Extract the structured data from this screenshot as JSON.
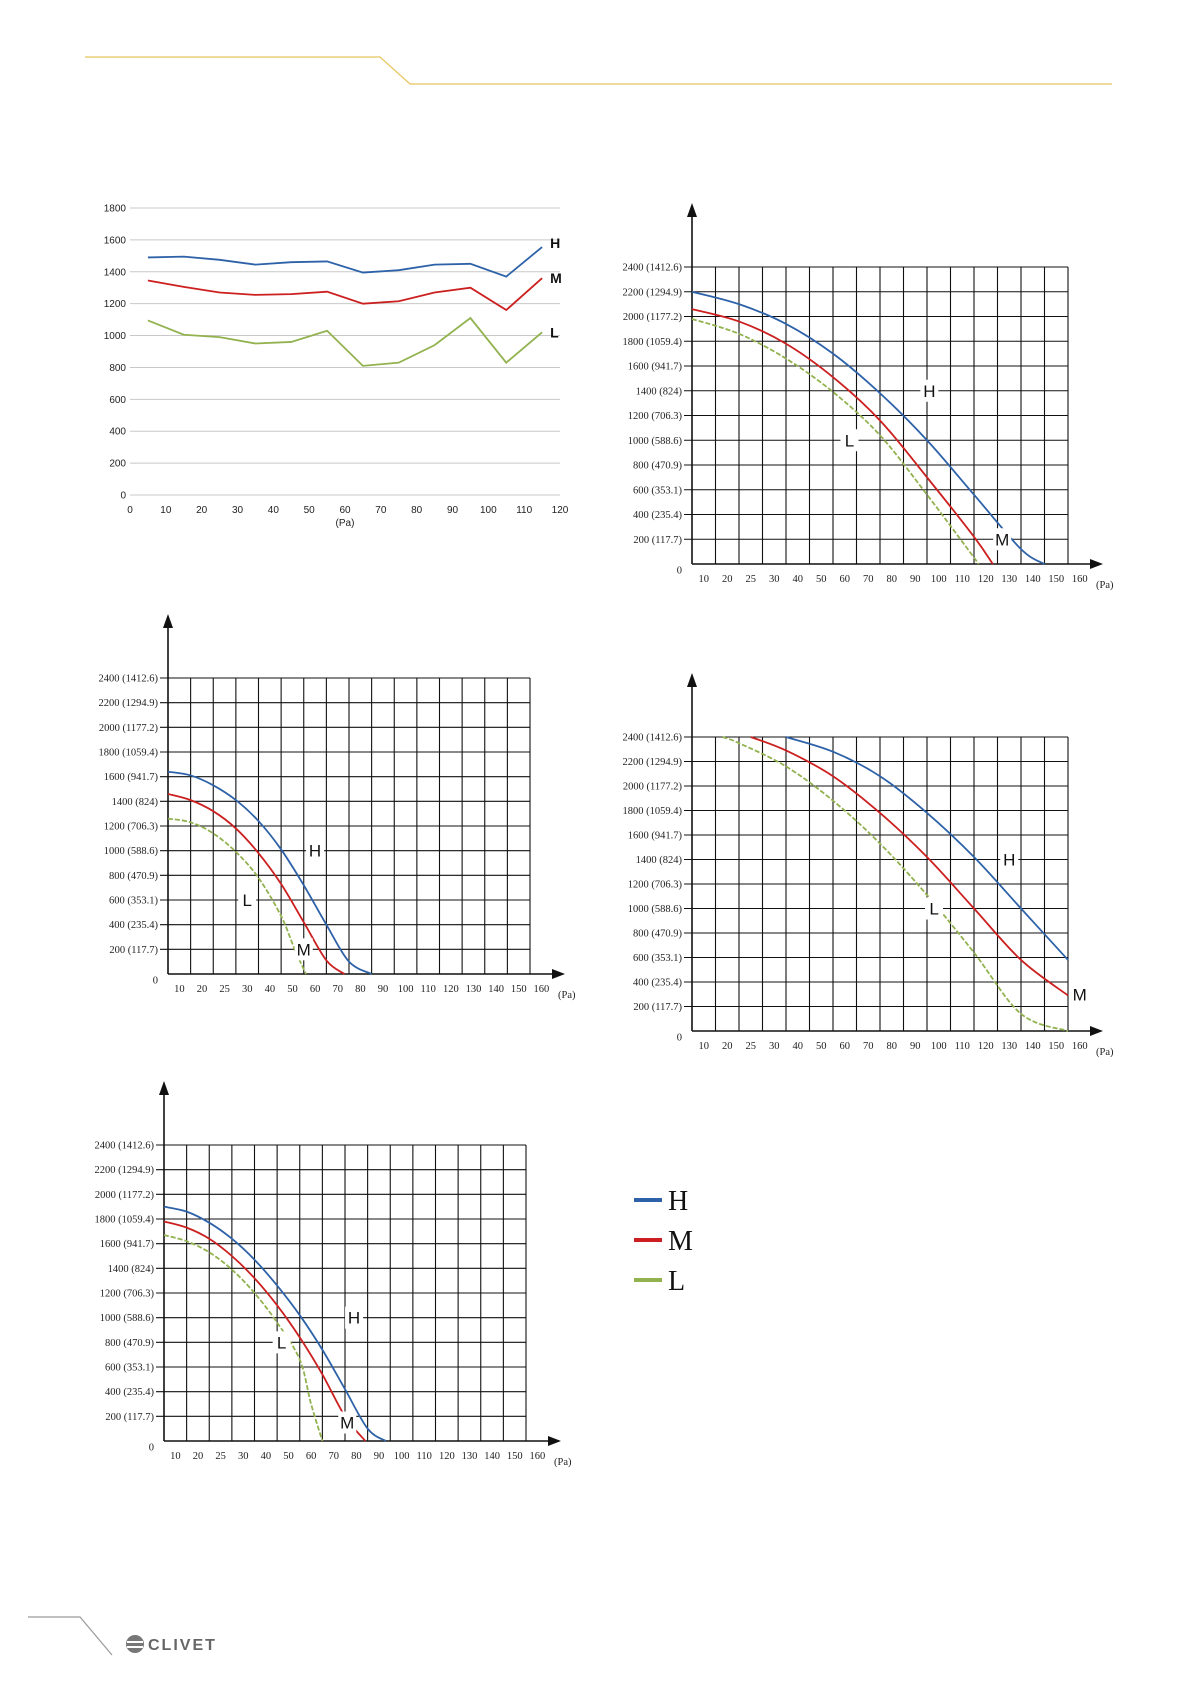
{
  "branding": {
    "logo_text": "CLIVET"
  },
  "colors": {
    "H": "#2e62a8",
    "M": "#cc1f1f",
    "L": "#92b24f",
    "grid_dark": "#111111",
    "grid_light": "#c8c8c8",
    "header_line": "#e7c45c"
  },
  "legend": {
    "items": [
      {
        "key": "H",
        "label": "H"
      },
      {
        "key": "M",
        "label": "M"
      },
      {
        "key": "L",
        "label": "L"
      }
    ]
  },
  "chart_data": [
    {
      "type": "line",
      "title": "",
      "xlabel": "(Pa)",
      "ylabel": "",
      "xlim": [
        0,
        120
      ],
      "ylim": [
        0,
        1800
      ],
      "xticks": [
        "0",
        "10",
        "20",
        "30",
        "40",
        "50",
        "60",
        "70",
        "80",
        "90",
        "100",
        "110",
        "120"
      ],
      "yticks": [
        "0",
        "200",
        "400",
        "600",
        "800",
        "1000",
        "1200",
        "1400",
        "1600",
        "1800"
      ],
      "grid": "horizontal",
      "series": [
        {
          "name": "H",
          "x": [
            5,
            15,
            25,
            35,
            45,
            55,
            65,
            75,
            85,
            95,
            105,
            115
          ],
          "y": [
            1490,
            1495,
            1475,
            1445,
            1460,
            1465,
            1395,
            1410,
            1445,
            1450,
            1370,
            1555
          ]
        },
        {
          "name": "M",
          "x": [
            5,
            15,
            25,
            35,
            45,
            55,
            65,
            75,
            85,
            95,
            105,
            115
          ],
          "y": [
            1345,
            1305,
            1270,
            1255,
            1260,
            1275,
            1200,
            1215,
            1270,
            1300,
            1160,
            1360
          ]
        },
        {
          "name": "L",
          "x": [
            5,
            15,
            25,
            35,
            45,
            55,
            65,
            75,
            85,
            95,
            105,
            115
          ],
          "y": [
            1095,
            1005,
            990,
            950,
            960,
            1030,
            810,
            830,
            940,
            1110,
            830,
            1020
          ]
        }
      ]
    },
    {
      "type": "line",
      "title": "",
      "xlabel": "(Pa)",
      "ylabel": "",
      "xticks": [
        "10",
        "20",
        "25",
        "30",
        "40",
        "50",
        "60",
        "70",
        "80",
        "90",
        "100",
        "110",
        "120",
        "130",
        "140",
        "150",
        "160"
      ],
      "yticks": [
        "0",
        "200 (117.7)",
        "400 (235.4)",
        "600 (353.1)",
        "800 (470.9)",
        "1000 (588.6)",
        "1200 (706.3)",
        "1400 (824)",
        "1600 (941.7)",
        "1800 (1059.4)",
        "2000 (1177.2)",
        "2200 (1294.9)",
        "2400 (1412.6)"
      ],
      "series": [
        {
          "name": "H",
          "x": [
            0,
            2,
            4,
            6,
            8,
            10,
            12,
            14,
            15
          ],
          "y": [
            2200,
            2100,
            1940,
            1700,
            1380,
            1000,
            560,
            120,
            0
          ]
        },
        {
          "name": "M",
          "x": [
            0,
            2,
            4,
            6,
            8,
            10,
            12,
            12.8
          ],
          "y": [
            2060,
            1960,
            1780,
            1510,
            1160,
            700,
            220,
            0
          ]
        },
        {
          "name": "L",
          "x": [
            0,
            2,
            4,
            6,
            8,
            10,
            11.5,
            12.2
          ],
          "y": [
            1980,
            1860,
            1660,
            1390,
            1040,
            560,
            180,
            0
          ]
        }
      ],
      "annotations": [
        "H",
        "M",
        "L"
      ]
    },
    {
      "type": "line",
      "title": "",
      "xlabel": "(Pa)",
      "ylabel": "",
      "xticks": [
        "10",
        "20",
        "25",
        "30",
        "40",
        "50",
        "60",
        "70",
        "80",
        "90",
        "100",
        "110",
        "120",
        "130",
        "140",
        "150",
        "160"
      ],
      "yticks": [
        "0",
        "200 (117.7)",
        "400 (235.4)",
        "600 (353.1)",
        "800 (470.9)",
        "1000 (588.6)",
        "1200 (706.3)",
        "1400 (824)",
        "1600 (941.7)",
        "1800 (1059.4)",
        "2000 (1177.2)",
        "2200 (1294.9)",
        "2400 (1412.6)"
      ],
      "series": [
        {
          "name": "H",
          "x": [
            0,
            1,
            2,
            3,
            4,
            5,
            6,
            7,
            8,
            9
          ],
          "y": [
            1640,
            1610,
            1530,
            1410,
            1240,
            1010,
            720,
            400,
            100,
            0
          ]
        },
        {
          "name": "M",
          "x": [
            0,
            1,
            2,
            3,
            4,
            5,
            6,
            7,
            7.8
          ],
          "y": [
            1460,
            1410,
            1320,
            1180,
            980,
            730,
            420,
            110,
            0
          ]
        },
        {
          "name": "L",
          "x": [
            0,
            1,
            2,
            3,
            4,
            5,
            5.6,
            6.1
          ],
          "y": [
            1260,
            1230,
            1140,
            990,
            780,
            470,
            200,
            0
          ]
        }
      ],
      "annotations": [
        "H",
        "M",
        "L"
      ]
    },
    {
      "type": "line",
      "title": "",
      "xlabel": "(Pa)",
      "ylabel": "",
      "xticks": [
        "10",
        "20",
        "25",
        "30",
        "40",
        "50",
        "60",
        "70",
        "80",
        "90",
        "100",
        "110",
        "120",
        "130",
        "140",
        "150",
        "160"
      ],
      "yticks": [
        "0",
        "200 (117.7)",
        "400 (235.4)",
        "600 (353.1)",
        "800 (470.9)",
        "1000 (588.6)",
        "1200 (706.3)",
        "1400 (824)",
        "1600 (941.7)",
        "1800 (1059.4)",
        "2000 (1177.2)",
        "2200 (1294.9)",
        "2400 (1412.6)"
      ],
      "series": [
        {
          "name": "H",
          "x": [
            4,
            6,
            8,
            10,
            12,
            14,
            16
          ],
          "y": [
            2400,
            2280,
            2080,
            1780,
            1420,
            1000,
            580
          ]
        },
        {
          "name": "M",
          "x": [
            2.5,
            4,
            6,
            8,
            10,
            12,
            14,
            16
          ],
          "y": [
            2400,
            2290,
            2080,
            1780,
            1420,
            1000,
            580,
            290
          ]
        },
        {
          "name": "L",
          "x": [
            1.3,
            2,
            4,
            6,
            8,
            10,
            12,
            14,
            16
          ],
          "y": [
            2400,
            2350,
            2160,
            1880,
            1530,
            1110,
            640,
            140,
            0
          ]
        }
      ],
      "annotations": [
        "H",
        "M",
        "L"
      ]
    },
    {
      "type": "line",
      "title": "",
      "xlabel": "(Pa)",
      "ylabel": "",
      "xticks": [
        "10",
        "20",
        "25",
        "30",
        "40",
        "50",
        "60",
        "70",
        "80",
        "90",
        "100",
        "110",
        "120",
        "130",
        "140",
        "150",
        "160"
      ],
      "yticks": [
        "0",
        "200 (117.7)",
        "400 (235.4)",
        "600 (353.1)",
        "800 (470.9)",
        "1000 (588.6)",
        "1200 (706.3)",
        "1400 (824)",
        "1600 (941.7)",
        "1800 (1059.4)",
        "2000 (1177.2)",
        "2200 (1294.9)",
        "2400 (1412.6)"
      ],
      "series": [
        {
          "name": "H",
          "x": [
            0,
            1,
            2,
            3,
            4,
            5,
            6,
            7,
            8,
            9,
            9.8
          ],
          "y": [
            1900,
            1860,
            1770,
            1640,
            1470,
            1260,
            1020,
            740,
            420,
            100,
            0
          ]
        },
        {
          "name": "M",
          "x": [
            0,
            1,
            2,
            3,
            4,
            5,
            6,
            7,
            8,
            8.9
          ],
          "y": [
            1780,
            1730,
            1640,
            1500,
            1320,
            1100,
            840,
            540,
            200,
            0
          ]
        },
        {
          "name": "L",
          "x": [
            0,
            1,
            2,
            3,
            4,
            5,
            6,
            6.5,
            7
          ],
          "y": [
            1670,
            1620,
            1530,
            1390,
            1200,
            960,
            660,
            300,
            0
          ]
        }
      ],
      "annotations": [
        "H",
        "M",
        "L"
      ]
    }
  ]
}
